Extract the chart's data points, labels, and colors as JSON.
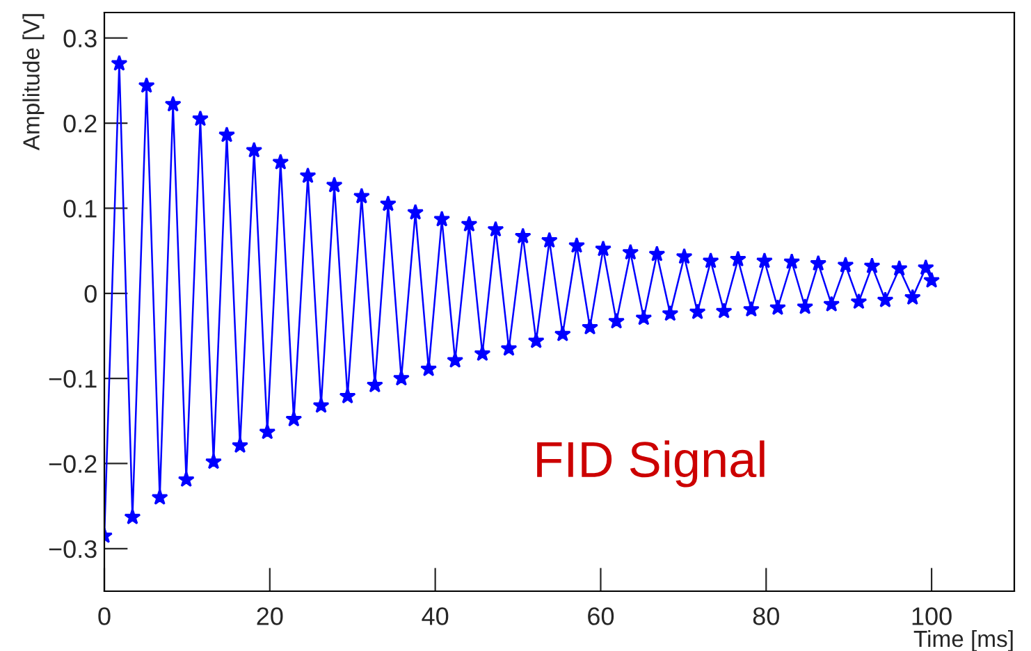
{
  "chart_data": {
    "type": "line",
    "xlabel": "Time [ms]",
    "ylabel": "Amplitude [V]",
    "annotations": [
      "FID Signal"
    ],
    "x": [
      0,
      1.8,
      3.4,
      5.1,
      6.7,
      8.3,
      9.9,
      11.6,
      13.2,
      14.8,
      16.4,
      18.1,
      19.7,
      21.3,
      22.9,
      24.6,
      26.2,
      27.8,
      29.4,
      31.1,
      32.7,
      34.3,
      35.9,
      37.6,
      39.2,
      40.8,
      42.4,
      44.1,
      45.7,
      47.3,
      48.9,
      50.6,
      52.2,
      53.8,
      55.4,
      57.1,
      58.7,
      60.3,
      61.9,
      63.6,
      65.2,
      66.8,
      68.4,
      70.1,
      71.7,
      73.3,
      74.9,
      76.6,
      78.2,
      79.8,
      81.4,
      83.1,
      84.7,
      86.3,
      87.9,
      89.6,
      91.2,
      92.8,
      94.4,
      96.1,
      97.7,
      99.3,
      100
    ],
    "series": [
      {
        "color": "#0000ff",
        "values": [
          -0.285,
          0.27,
          -0.263,
          0.244,
          -0.24,
          0.222,
          -0.219,
          0.205,
          -0.198,
          0.186,
          -0.179,
          0.168,
          -0.163,
          0.154,
          -0.148,
          0.138,
          -0.132,
          0.127,
          -0.121,
          0.114,
          -0.108,
          0.105,
          -0.1,
          0.095,
          -0.089,
          0.087,
          -0.079,
          0.081,
          -0.071,
          0.075,
          -0.065,
          0.067,
          -0.056,
          0.062,
          -0.048,
          0.056,
          -0.04,
          0.052,
          -0.033,
          0.048,
          -0.029,
          0.046,
          -0.024,
          0.043,
          -0.022,
          0.038,
          -0.021,
          0.04,
          -0.019,
          0.038,
          -0.017,
          0.037,
          -0.016,
          0.035,
          -0.013,
          0.033,
          -0.01,
          0.032,
          -0.008,
          0.029,
          -0.005,
          0.03,
          0.015
        ]
      }
    ],
    "xlim": [
      0,
      110
    ],
    "xticks": [
      0,
      20,
      40,
      60,
      80,
      100
    ],
    "ylim": [
      -0.35,
      0.33
    ],
    "yticks": [
      {
        "value": -0.3,
        "label": "−0.3"
      },
      {
        "value": -0.2,
        "label": "−0.2"
      },
      {
        "value": -0.1,
        "label": "−0.1"
      },
      0,
      0.1,
      0.2,
      0.3
    ],
    "grid": false,
    "legend": false,
    "marker": "star",
    "line_style": "solid"
  }
}
